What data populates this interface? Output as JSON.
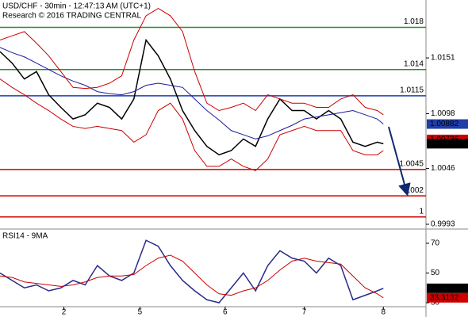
{
  "chart_data": [
    {
      "type": "line",
      "title": "USD/CHF - 30min - 12:47:13 AM (UTC+1)",
      "subtitle": "Research © 2016 TRADING CENTRAL",
      "x": [
        0,
        2,
        4,
        6,
        8,
        10,
        12,
        14,
        16,
        18,
        20,
        22,
        24,
        26,
        28,
        30,
        32,
        34,
        36,
        38,
        40,
        42,
        44,
        46,
        48,
        50,
        52,
        54,
        56,
        58,
        60,
        62,
        63
      ],
      "xlim": [
        0,
        70
      ],
      "ylim": [
        0.999,
        1.0206
      ],
      "yticks": [
        0.9993,
        1.0046,
        1.0098,
        1.0151
      ],
      "series": [
        {
          "name": "Price",
          "color": "#000000",
          "values": [
            1.0157,
            1.0146,
            1.0131,
            1.0138,
            1.0116,
            1.0104,
            1.0093,
            1.0097,
            1.0108,
            1.0104,
            1.0093,
            1.0112,
            1.0168,
            1.0153,
            1.0131,
            1.0101,
            1.0082,
            1.0067,
            1.0059,
            1.0063,
            1.0074,
            1.0067,
            1.0093,
            1.0112,
            1.0101,
            1.0101,
            1.0093,
            1.0101,
            1.0093,
            1.0071,
            1.0067,
            1.0071,
            1.00695
          ]
        },
        {
          "name": "MA",
          "color": "#1a1aa0",
          "values": [
            1.0161,
            1.0156,
            1.0152,
            1.0146,
            1.014,
            1.0134,
            1.0129,
            1.0125,
            1.0119,
            1.0117,
            1.0116,
            1.0119,
            1.0125,
            1.0127,
            1.0125,
            1.0123,
            1.0112,
            1.0101,
            1.0092,
            1.0082,
            1.0078,
            1.0074,
            1.0077,
            1.0082,
            1.0087,
            1.0093,
            1.0095,
            1.0097,
            1.0099,
            1.0101,
            1.0097,
            1.0093,
            1.00882
          ]
        },
        {
          "name": "Upper band",
          "color": "#cc0000",
          "values": [
            1.0168,
            1.0172,
            1.0176,
            1.0165,
            1.0153,
            1.0138,
            1.0123,
            1.0122,
            1.0123,
            1.0127,
            1.0134,
            1.0168,
            1.0191,
            1.0198,
            1.0191,
            1.0176,
            1.0138,
            1.0108,
            1.0101,
            1.0104,
            1.0108,
            1.0101,
            1.0116,
            1.0112,
            1.0108,
            1.0108,
            1.0104,
            1.0104,
            1.0112,
            1.0116,
            1.0104,
            1.0101,
            1.0097
          ]
        },
        {
          "name": "Lower band",
          "color": "#cc0000",
          "values": [
            1.0131,
            1.0123,
            1.0116,
            1.0108,
            1.0101,
            1.0093,
            1.0086,
            1.0084,
            1.0086,
            1.0084,
            1.0082,
            1.0071,
            1.0078,
            1.0101,
            1.0108,
            1.0093,
            1.0063,
            1.0048,
            1.0048,
            1.0055,
            1.0048,
            1.0044,
            1.0055,
            1.0078,
            1.0082,
            1.0086,
            1.0082,
            1.0082,
            1.0082,
            1.0063,
            1.0059,
            1.0059,
            1.0063
          ]
        }
      ],
      "levels": [
        {
          "value": 1.018,
          "color": "#2e8b2e"
        },
        {
          "value": 1.014,
          "color": "#2e8b2e"
        },
        {
          "value": 1.0115,
          "color": "#1f3ea8"
        },
        {
          "value": 1.0045,
          "color": "#d00000"
        },
        {
          "value": 1.002,
          "color": "#d00000"
        },
        {
          "value": 1,
          "color": "#d00000"
        }
      ],
      "axis_markers": [
        {
          "value": 1.00882,
          "color": "#1f3ea8"
        },
        {
          "value": 1.00736,
          "color": "#d00000"
        },
        {
          "value": 1.00695,
          "color": "#000000"
        }
      ]
    },
    {
      "type": "line",
      "title": "RSI14 - 9MA",
      "x": [
        0,
        2,
        4,
        6,
        8,
        10,
        12,
        14,
        16,
        18,
        20,
        22,
        24,
        26,
        28,
        30,
        32,
        34,
        36,
        38,
        40,
        42,
        44,
        46,
        48,
        50,
        52,
        54,
        56,
        58,
        60,
        62,
        63
      ],
      "xlim": [
        0,
        70
      ],
      "xticks": [
        {
          "value": 10.5,
          "label": "2"
        },
        {
          "value": 23,
          "label": "5"
        },
        {
          "value": 37,
          "label": "6"
        },
        {
          "value": 50,
          "label": "7"
        },
        {
          "value": 63,
          "label": "8"
        }
      ],
      "ylim": [
        28.4,
        78
      ],
      "yticks": [
        30,
        50,
        70
      ],
      "series": [
        {
          "name": "RSI14",
          "color": "#2a2a8a",
          "values": [
            50,
            45,
            40,
            42,
            38,
            40,
            45,
            42,
            55,
            48,
            45,
            50,
            72,
            68,
            55,
            45,
            38,
            32,
            30,
            40,
            50,
            38,
            55,
            65,
            60,
            58,
            50,
            60,
            55,
            32,
            35,
            38,
            39.6998
          ]
        },
        {
          "name": "9MA",
          "color": "#cc0000",
          "values": [
            48,
            47,
            44,
            43,
            42,
            41,
            42,
            44,
            47,
            48,
            48,
            49,
            55,
            60,
            62,
            58,
            50,
            42,
            36,
            35,
            38,
            40,
            45,
            52,
            58,
            60,
            58,
            57,
            56,
            48,
            40,
            36,
            33.3132
          ]
        }
      ],
      "axis_markers": [
        {
          "value": 39.6998,
          "color": "#000000"
        },
        {
          "value": 33.3132,
          "color": "#d00000"
        }
      ]
    }
  ]
}
